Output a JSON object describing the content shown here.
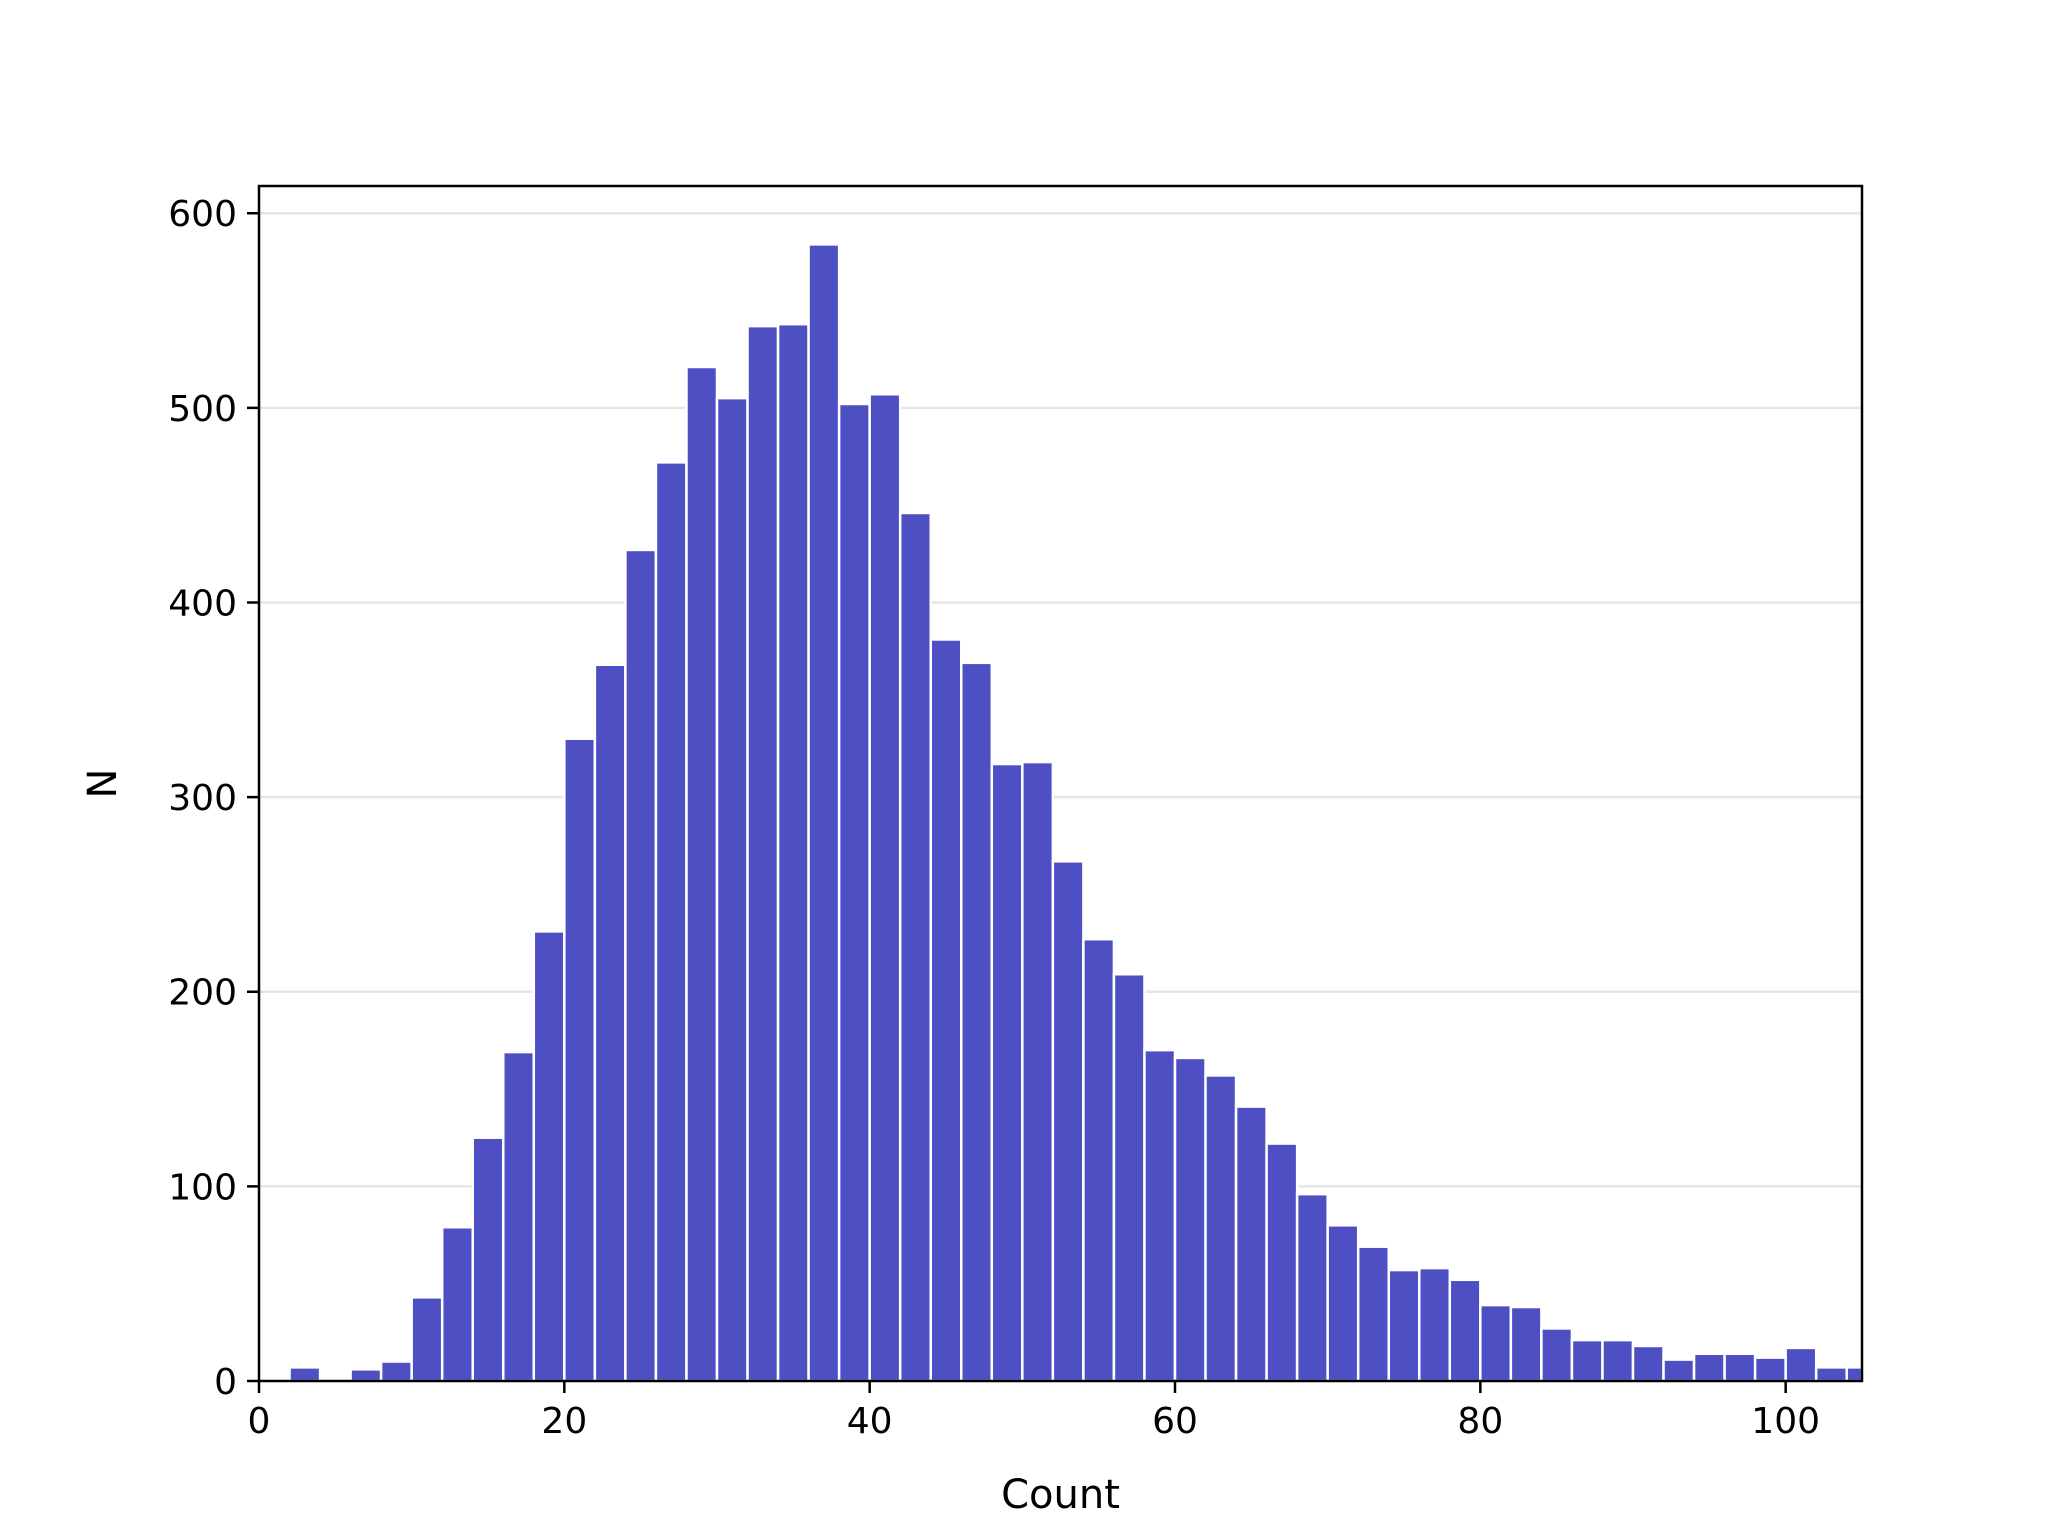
{
  "chart_data": {
    "type": "bar",
    "title": "",
    "xlabel": "Count",
    "ylabel": "N",
    "xlim": [
      0,
      105
    ],
    "ylim": [
      0,
      614
    ],
    "x_ticks": [
      0,
      20,
      40,
      60,
      80,
      100
    ],
    "y_ticks": [
      0,
      100,
      200,
      300,
      400,
      500,
      600
    ],
    "grid": "y",
    "bar_color": "#4f4fc4",
    "bin_width": 2,
    "bin_starts": [
      0,
      2,
      4,
      6,
      8,
      10,
      12,
      14,
      16,
      18,
      20,
      22,
      24,
      26,
      28,
      30,
      32,
      34,
      36,
      38,
      40,
      42,
      44,
      46,
      48,
      50,
      52,
      54,
      56,
      58,
      60,
      62,
      64,
      66,
      68,
      70,
      72,
      74,
      76,
      78,
      80,
      82,
      84,
      86,
      88,
      90,
      92,
      94,
      96,
      98,
      100,
      102,
      104
    ],
    "values": [
      0,
      7,
      0,
      6,
      10,
      43,
      79,
      125,
      169,
      231,
      330,
      368,
      427,
      472,
      521,
      505,
      542,
      543,
      584,
      502,
      507,
      446,
      381,
      369,
      317,
      318,
      267,
      227,
      209,
      170,
      166,
      157,
      141,
      122,
      96,
      80,
      69,
      57,
      58,
      52,
      39,
      38,
      27,
      21,
      21,
      18,
      11,
      14,
      14,
      12,
      17,
      7,
      7
    ]
  }
}
